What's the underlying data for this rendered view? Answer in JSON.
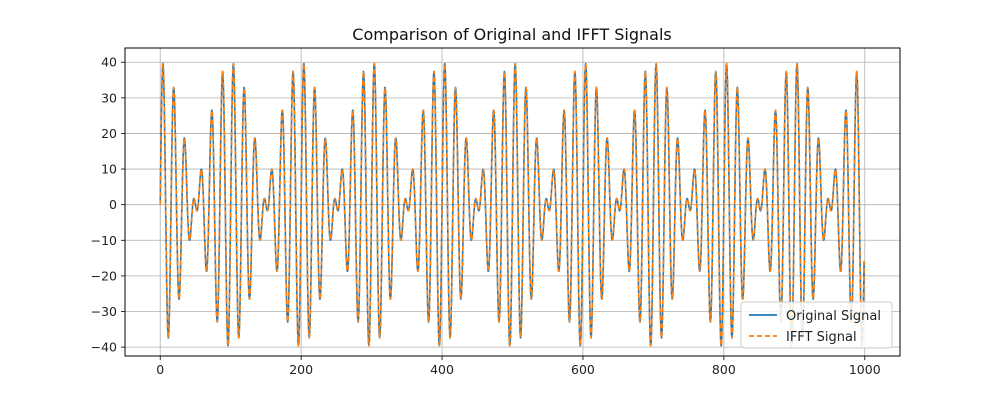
{
  "chart_data": {
    "type": "line",
    "title": "Comparison of Original and IFFT Signals",
    "xlabel": "",
    "ylabel": "",
    "xlim": [
      -50,
      1050
    ],
    "ylim": [
      -42.5,
      44
    ],
    "x_ticks": [
      0,
      200,
      400,
      600,
      800,
      1000
    ],
    "y_ticks": [
      -40,
      -30,
      -20,
      -10,
      0,
      10,
      20,
      30,
      40
    ],
    "grid": true,
    "legend_position": "lower-right",
    "x_range": [
      0,
      999
    ],
    "signal_model": {
      "components": [
        {
          "amplitude": 20,
          "period_samples": 14.285714
        },
        {
          "amplitude": 20,
          "period_samples": 16.666667
        }
      ]
    },
    "series": [
      {
        "name": "Original Signal",
        "style": "solid",
        "color": "#1f77b4"
      },
      {
        "name": "IFFT Signal",
        "style": "dashed",
        "color": "#ff7f0e"
      }
    ]
  }
}
